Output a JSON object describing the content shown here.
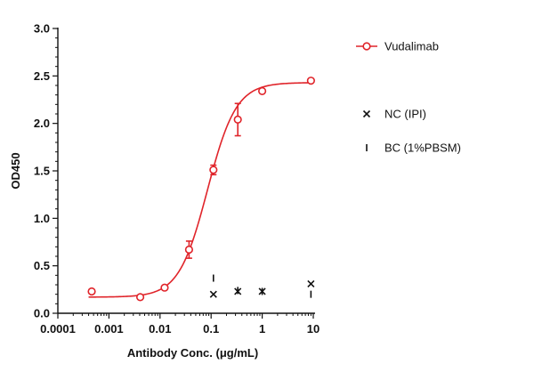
{
  "chart_data": {
    "type": "scatter",
    "xlabel": "Antibody Conc. (μg/mL)",
    "ylabel": "OD450",
    "x_scale": "log",
    "xlim": [
      0.0001,
      10
    ],
    "ylim": [
      0,
      3.0
    ],
    "x_ticks": [
      {
        "value": 0.0001,
        "label": "0.0001"
      },
      {
        "value": 0.001,
        "label": "0.001"
      },
      {
        "value": 0.01,
        "label": "0.01"
      },
      {
        "value": 0.1,
        "label": "0.1"
      },
      {
        "value": 1,
        "label": "1"
      },
      {
        "value": 10,
        "label": "10"
      }
    ],
    "y_ticks": [
      {
        "value": 0,
        "label": "0.0"
      },
      {
        "value": 0.5,
        "label": "0.5"
      },
      {
        "value": 1.0,
        "label": "1.0"
      },
      {
        "value": 1.5,
        "label": "1.5"
      },
      {
        "value": 2.0,
        "label": "2.0"
      },
      {
        "value": 2.5,
        "label": "2.5"
      },
      {
        "value": 3.0,
        "label": "3.0"
      }
    ],
    "grid": false,
    "legend_position": "right",
    "series": [
      {
        "name": "Vudalimab",
        "marker": "open-circle",
        "color": "#e0242a",
        "x": [
          0.00046,
          0.0041,
          0.0123,
          0.037,
          0.111,
          0.333,
          1.0,
          9.0
        ],
        "y": [
          0.23,
          0.17,
          0.27,
          0.67,
          1.51,
          2.04,
          2.34,
          2.45
        ],
        "error": [
          0.0,
          0.0,
          0.0,
          0.09,
          0.05,
          0.17,
          0.0,
          0.0
        ],
        "fit": {
          "type": "4PL",
          "bottom": 0.17,
          "top": 2.43,
          "ec50": 0.085,
          "hill": 1.55
        }
      },
      {
        "name": "NC (IPI)",
        "marker": "x",
        "color": "#111111",
        "x": [
          0.111,
          0.333,
          1.0,
          9.0
        ],
        "y": [
          0.2,
          0.23,
          0.23,
          0.31
        ]
      },
      {
        "name": "BC (1%PBSM)",
        "marker": "plus",
        "color": "#111111",
        "x": [
          0.111,
          0.333,
          1.0,
          9.0
        ],
        "y": [
          0.37,
          0.24,
          0.23,
          0.2
        ]
      }
    ]
  }
}
